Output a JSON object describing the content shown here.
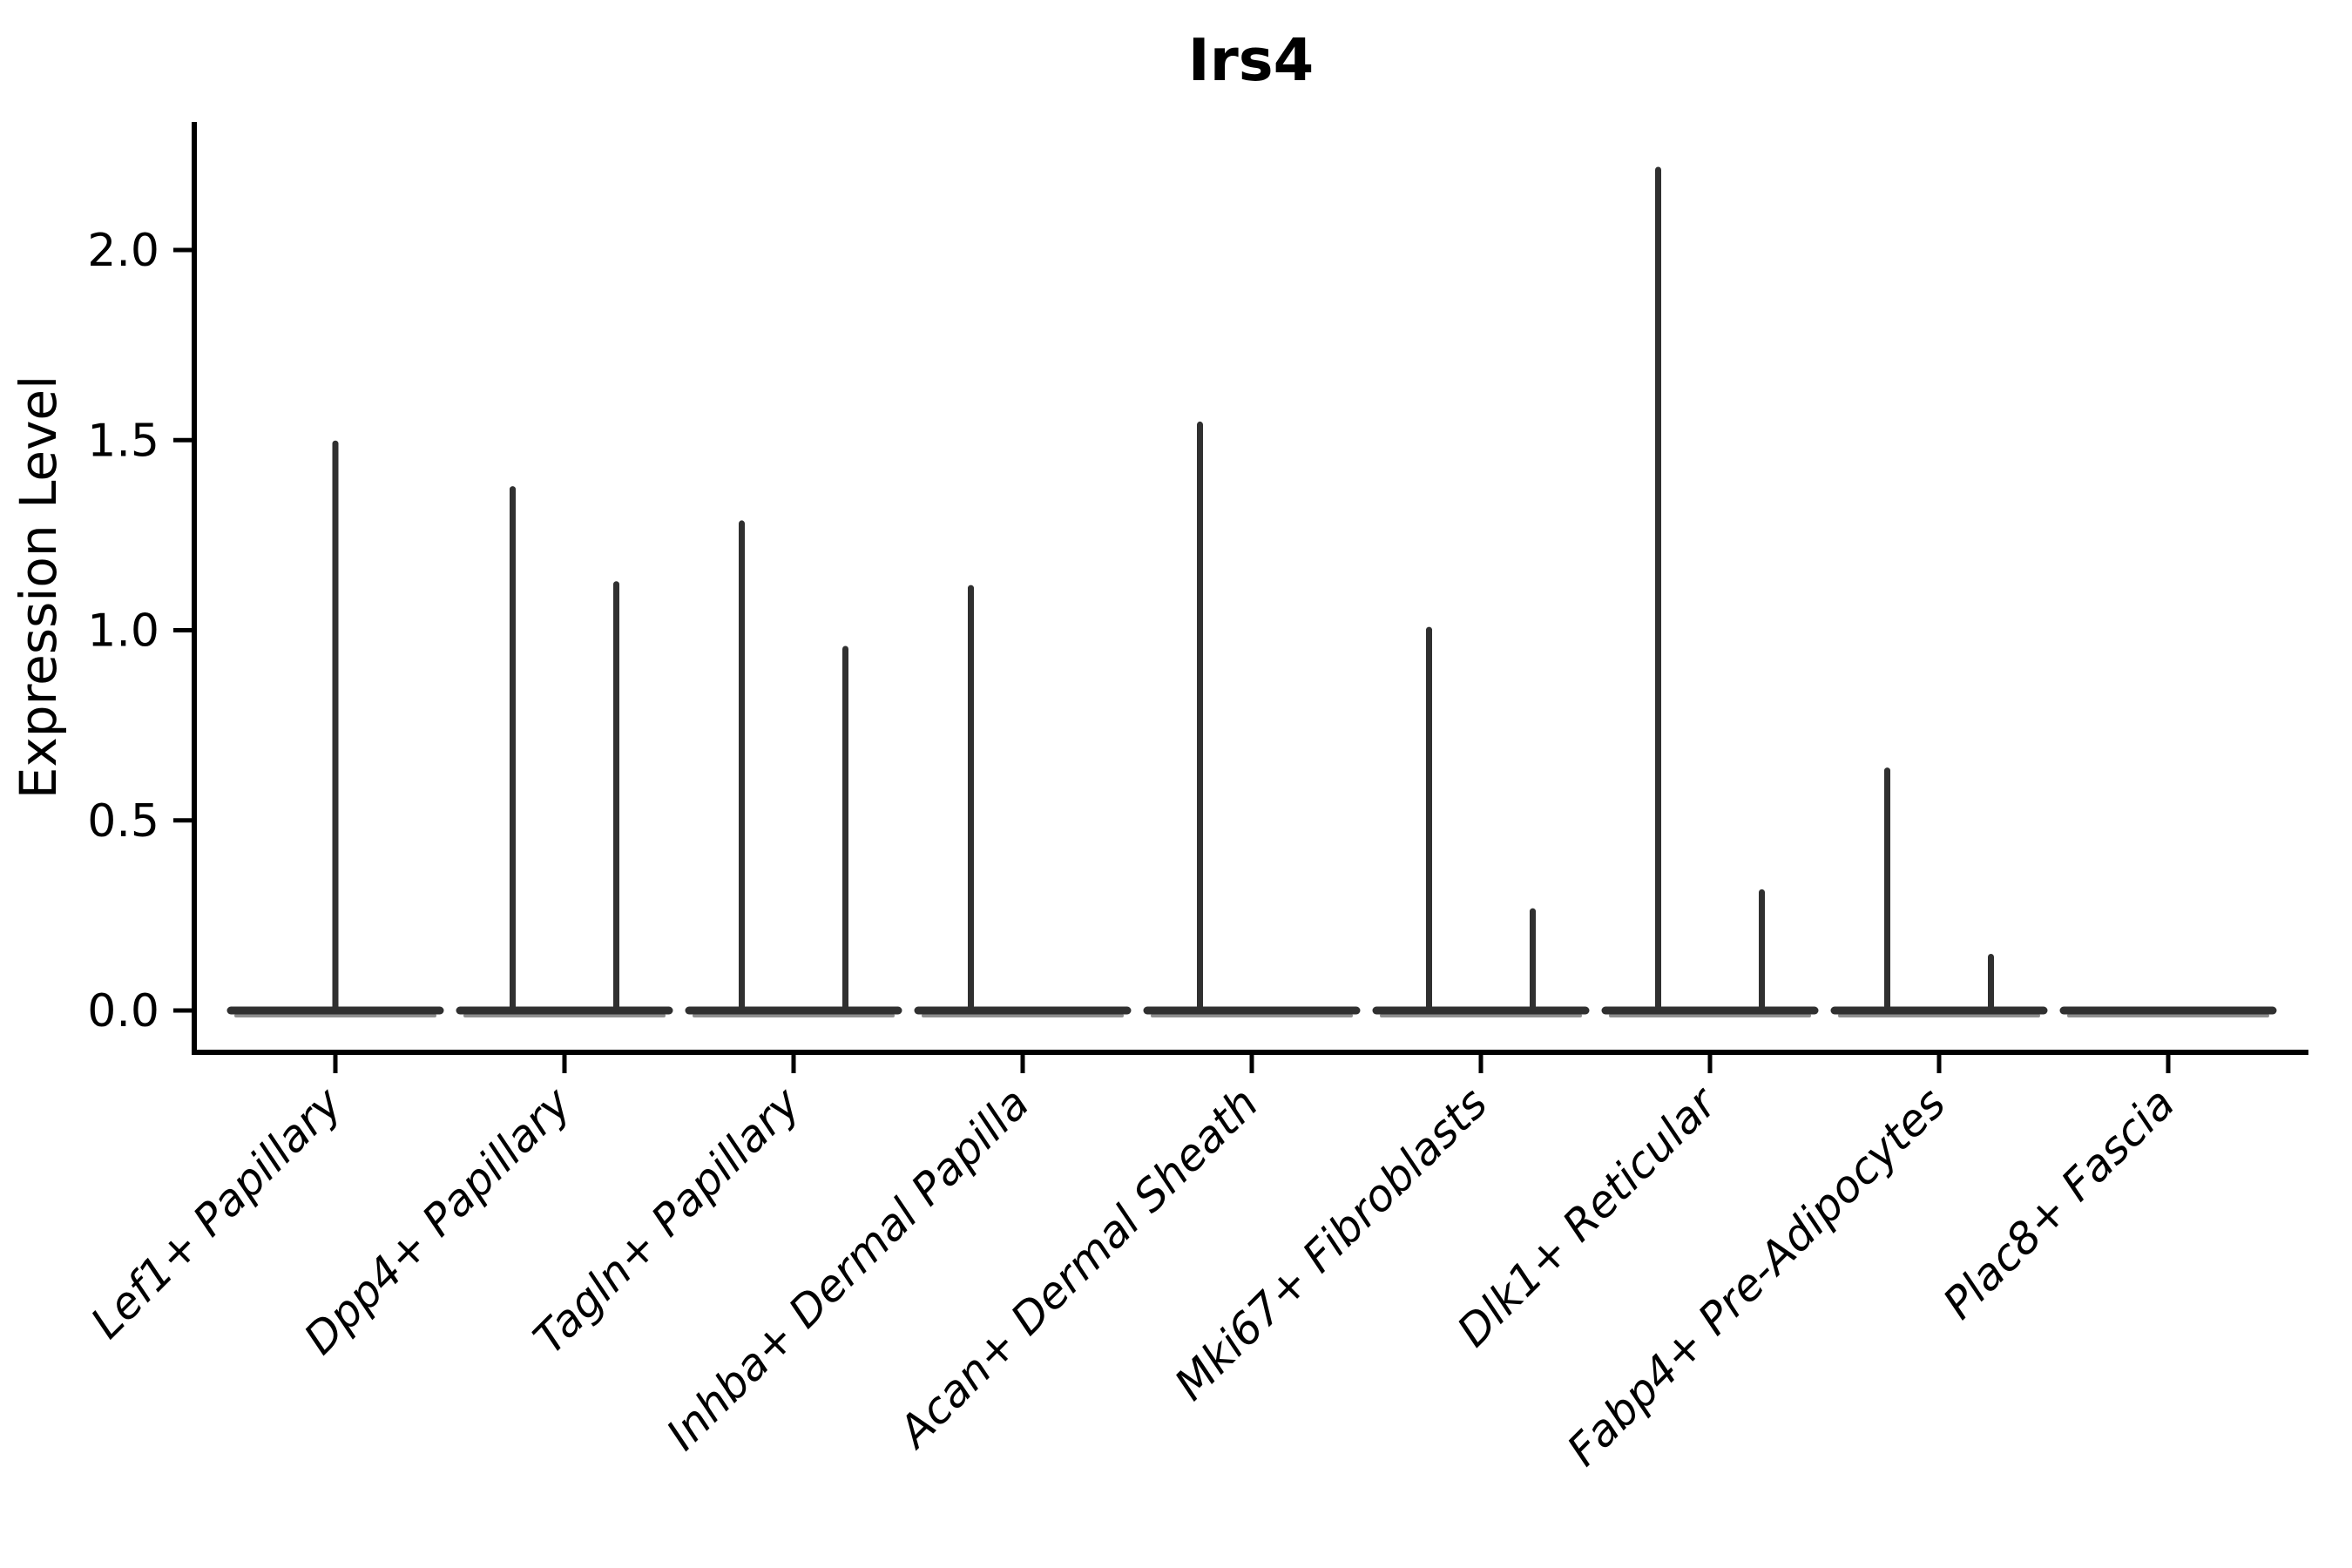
{
  "title": "Irs4",
  "colors": {
    "violin_line": "#303030",
    "violin_fringe": "#8f8f8f",
    "axis": "#000000",
    "background": "#ffffff"
  },
  "chart_data": {
    "type": "violin",
    "title": "Irs4",
    "xlabel": "",
    "ylabel": "Expression Level",
    "ylim": [
      -0.11,
      2.34
    ],
    "yticks": [
      "0.0",
      "0.5",
      "1.0",
      "1.5",
      "2.0"
    ],
    "ytick_values": [
      0.0,
      0.5,
      1.0,
      1.5,
      2.0
    ],
    "grid": "off",
    "legend": "none",
    "categories": [
      "Lef1+ Papillary",
      "Dpp4+ Papillary",
      "Tagln+ Papillary",
      "Inhba+ Dermal Papilla",
      "Acan+ Dermal Sheath",
      "Mki67+ Fibroblasts",
      "Dlk1+ Reticular",
      "Fabp4+ Pre-Adipocytes",
      "Plac8+ Fascia"
    ],
    "violins": [
      {
        "category": "Lef1+ Papillary",
        "base_value": 0.0,
        "spikes": [
          {
            "offset": 0,
            "max_value": 1.5
          }
        ]
      },
      {
        "category": "Dpp4+ Papillary",
        "base_value": 0.0,
        "spikes": [
          {
            "offset": -59.5,
            "max_value": 1.38
          },
          {
            "offset": 59.5,
            "max_value": 1.13
          }
        ]
      },
      {
        "category": "Tagln+ Papillary",
        "base_value": 0.0,
        "spikes": [
          {
            "offset": -59.5,
            "max_value": 1.29
          },
          {
            "offset": 59.5,
            "max_value": 0.96
          }
        ]
      },
      {
        "category": "Inhba+ Dermal Papilla",
        "base_value": 0.0,
        "spikes": [
          {
            "offset": -59.5,
            "max_value": 1.12
          }
        ]
      },
      {
        "category": "Acan+ Dermal Sheath",
        "base_value": 0.0,
        "spikes": [
          {
            "offset": -59.5,
            "max_value": 1.55
          }
        ]
      },
      {
        "category": "Mki67+ Fibroblasts",
        "base_value": 0.0,
        "spikes": [
          {
            "offset": -59.5,
            "max_value": 1.01
          },
          {
            "offset": 59.5,
            "max_value": 0.27
          }
        ]
      },
      {
        "category": "Dlk1+ Reticular",
        "base_value": 0.0,
        "spikes": [
          {
            "offset": -59.5,
            "max_value": 2.22
          },
          {
            "offset": 59.5,
            "max_value": 0.32
          }
        ]
      },
      {
        "category": "Fabp4+ Pre-Adipocytes",
        "base_value": 0.0,
        "spikes": [
          {
            "offset": -59.5,
            "max_value": 0.64
          },
          {
            "offset": 59.5,
            "max_value": 0.15
          }
        ]
      },
      {
        "category": "Plac8+ Fascia",
        "base_value": 0.0,
        "spikes": []
      }
    ]
  }
}
